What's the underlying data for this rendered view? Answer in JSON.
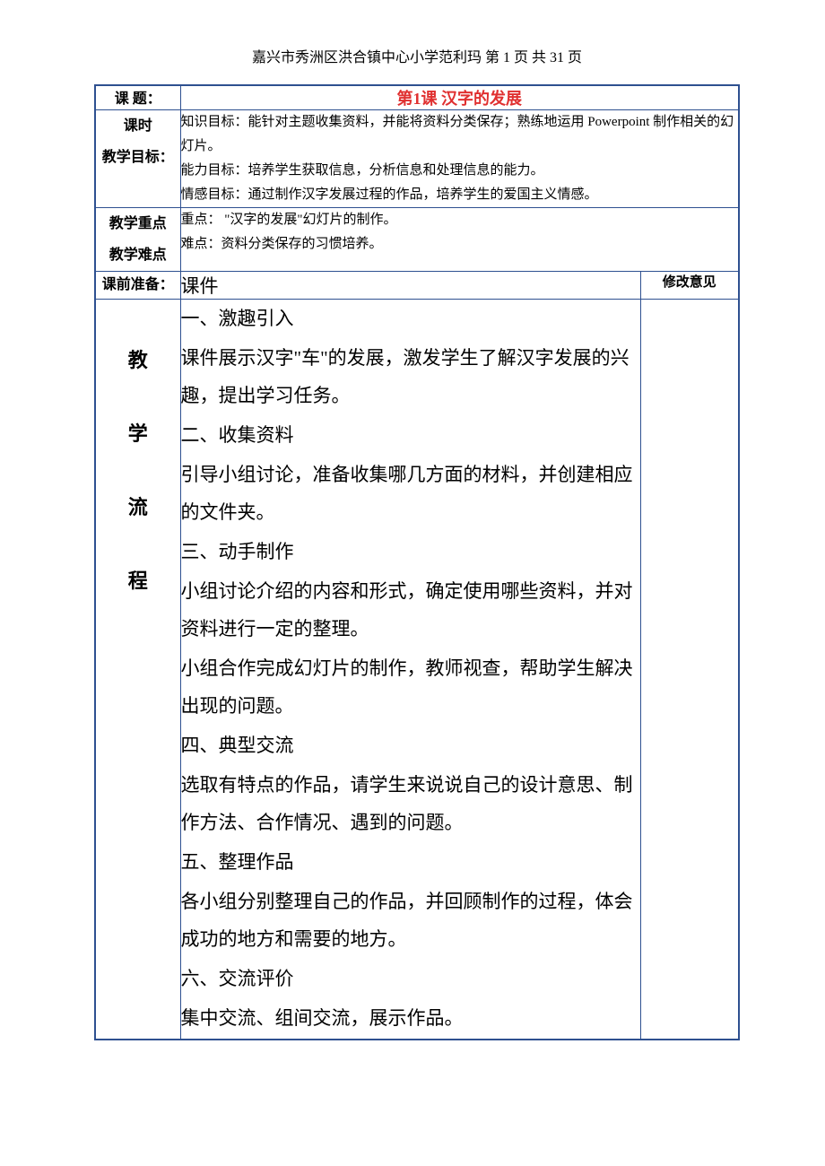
{
  "page_header": "嘉兴市秀洲区洪合镇中心小学范利玛  第 1 页 共 31 页",
  "table": {
    "row1": {
      "label": "课 题：",
      "content": "第1课 汉字的发展"
    },
    "row2": {
      "label": "课时\n教学目标：",
      "content": "知识目标：能针对主题收集资料，并能将资料分类保存；熟练地运用 Powerpoint 制作相关的幻灯片。\n能力目标：培养学生获取信息，分析信息和处理信息的能力。\n情感目标：通过制作汉字发展过程的作品，培养学生的爱国主义情感。"
    },
    "row3": {
      "label": "教学重点\n教学难点",
      "content": "重点：  \"汉字的发展\"幻灯片的制作。\n难点：资料分类保存的习惯培养。"
    },
    "row4": {
      "label": "课前准备：",
      "content": "课件",
      "feedback_header": "修改意见"
    },
    "row5": {
      "label_chars": [
        "教",
        "学",
        "流",
        "程"
      ],
      "content_lines": [
        "一、激趣引入",
        "课件展示汉字\"车\"的发展，激发学生了解汉字发展的兴趣，提出学习任务。",
        "二、收集资料",
        "引导小组讨论，准备收集哪几方面的材料，并创建相应的文件夹。",
        "三、动手制作",
        "小组讨论介绍的内容和形式，确定使用哪些资料，并对资料进行一定的整理。",
        "小组合作完成幻灯片的制作，教师视查，帮助学生解决出现的问题。",
        "四、典型交流",
        "选取有特点的作品，请学生来说说自己的设计意思、制作方法、合作情况、遇到的问题。",
        "五、整理作品",
        "各小组分别整理自己的作品，并回顾制作的过程，体会成功的地方和需要的地方。",
        "六、交流评价",
        "集中交流、组间交流，展示作品。"
      ]
    }
  },
  "colors": {
    "border": "#2e5090",
    "title_red": "#e03030",
    "text": "#000000",
    "background": "#ffffff"
  }
}
